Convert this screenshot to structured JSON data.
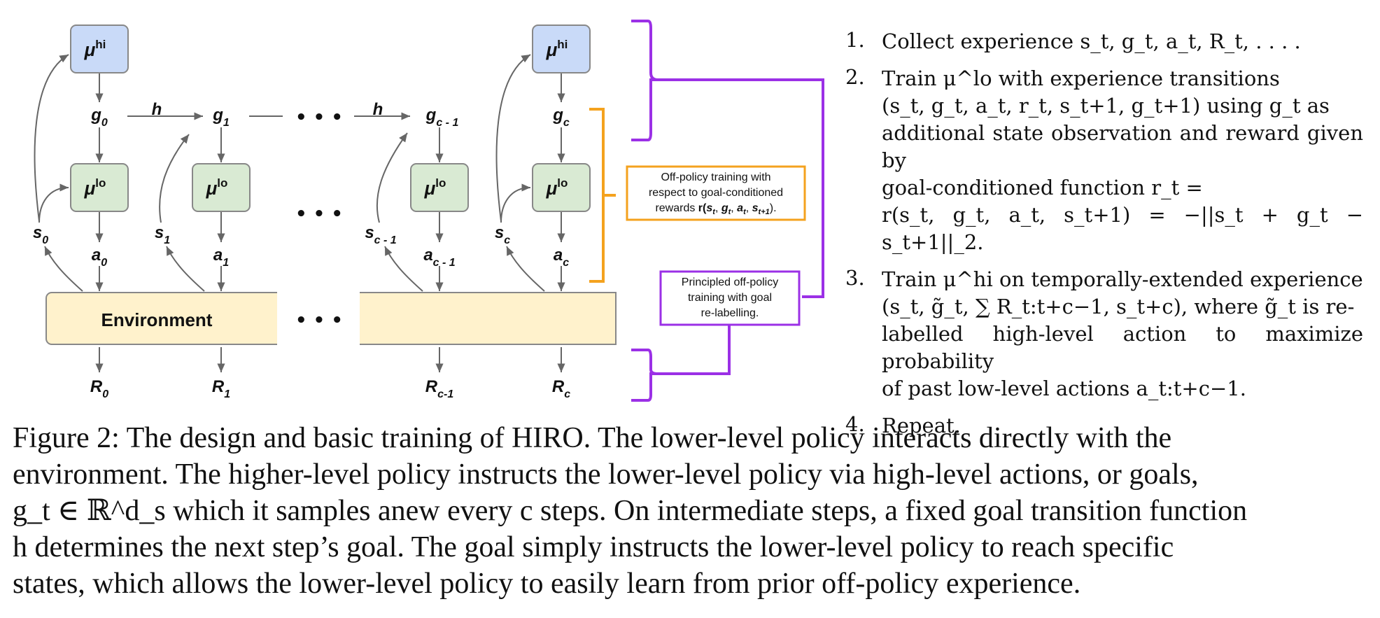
{
  "diagram": {
    "nodes": {
      "mu_hi_0": {
        "base": "μ",
        "sup": "hi"
      },
      "mu_hi_c": {
        "base": "μ",
        "sup": "hi"
      },
      "mu_lo_0": {
        "base": "μ",
        "sup": "lo"
      },
      "mu_lo_1": {
        "base": "μ",
        "sup": "lo"
      },
      "mu_lo_c1": {
        "base": "μ",
        "sup": "lo"
      },
      "mu_lo_c": {
        "base": "μ",
        "sup": "lo"
      },
      "g0": {
        "base": "g",
        "sub": "0"
      },
      "g1": {
        "base": "g",
        "sub": "1"
      },
      "gc1": {
        "base": "g",
        "sub": "c - 1"
      },
      "gc": {
        "base": "g",
        "sub": "c"
      },
      "s0": {
        "base": "s",
        "sub": "0"
      },
      "s1": {
        "base": "s",
        "sub": "1"
      },
      "sc1": {
        "base": "s",
        "sub": "c - 1"
      },
      "sc": {
        "base": "s",
        "sub": "c"
      },
      "a0": {
        "base": "a",
        "sub": "0"
      },
      "a1": {
        "base": "a",
        "sub": "1"
      },
      "ac1": {
        "base": "a",
        "sub": "c - 1"
      },
      "ac": {
        "base": "a",
        "sub": "c"
      },
      "R0": {
        "base": "R",
        "sub": "0"
      },
      "R1": {
        "base": "R",
        "sub": "1"
      },
      "Rc1": {
        "base": "R",
        "sub": "c-1"
      },
      "Rc": {
        "base": "R",
        "sub": "c"
      }
    },
    "h_label": "h",
    "ellipsis": "• • •",
    "environment_label": "Environment",
    "offpolicy_box": {
      "line1": "Off-policy training with",
      "line2": "respect to goal-conditioned",
      "line3_prefix": "rewards ",
      "line3_r": "r(",
      "line3_s": "s",
      "line3_s_sub": "t",
      "line3_g": "g",
      "line3_g_sub": "t",
      "line3_a": "a",
      "line3_a_sub": "t",
      "line3_s2": "s",
      "line3_s2_sub": "t+1",
      "line3_end": ").",
      "comma": ", "
    },
    "relabel_box": {
      "line1": "Principled off-policy",
      "line2": "training with goal",
      "line3": "re-labelling."
    },
    "colors": {
      "hi_fill": "#c9daf8",
      "lo_fill": "#d9ead3",
      "env_fill": "#fff2cc",
      "orange": "#f4a21e",
      "purple": "#9b30e6",
      "arrow": "#666666"
    }
  },
  "steps": [
    {
      "num": "1.",
      "lines": [
        "Collect experience s_t, g_t, a_t, R_t, . . . ."
      ]
    },
    {
      "num": "2.",
      "lines": [
        "Train μ^lo with experience transitions",
        "(s_t, g_t, a_t, r_t, s_t+1, g_t+1) using g_t as",
        "additional state observation and reward given by",
        "goal-conditioned function r_t =",
        "r(s_t, g_t, a_t, s_t+1) = −||s_t + g_t − s_t+1||_2."
      ]
    },
    {
      "num": "3.",
      "lines": [
        "Train μ^hi on temporally-extended experience",
        "(s_t, g̃_t, ∑ R_t:t+c−1, s_t+c), where g̃_t is re-",
        "labelled high-level action to maximize probability",
        "of past low-level actions a_t:t+c−1."
      ]
    },
    {
      "num": "4.",
      "lines": [
        "Repeat."
      ]
    }
  ],
  "caption": [
    "Figure 2: The design and basic training of HIRO. The lower-level policy interacts directly with the",
    "environment. The higher-level policy instructs the lower-level policy via high-level actions, or goals,",
    "g_t ∈ ℝ^d_s which it samples anew every c steps. On intermediate steps, a fixed goal transition function",
    "h determines the next step’s goal. The goal simply instructs the lower-level policy to reach specific",
    "states, which allows the lower-level policy to easily learn from prior off-policy experience."
  ]
}
